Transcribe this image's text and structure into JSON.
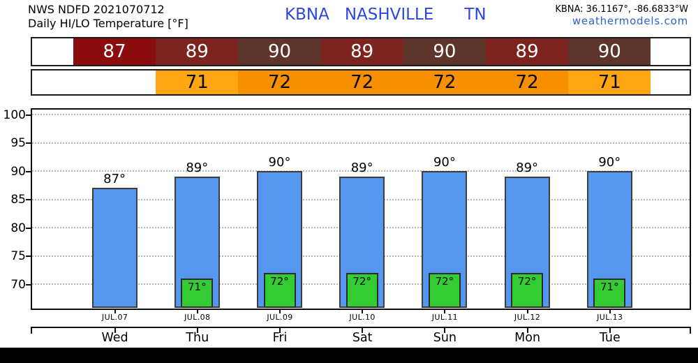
{
  "header": {
    "model_line": "NWS NDFD 2021070712",
    "product_line": "Daily HI/LO Temperature [°F]",
    "station_code": "KBNA",
    "station_city": "NASHVILLE",
    "station_state": "TN",
    "coords": "KBNA: 36.1167°, -86.6833°W",
    "site_link": "weathermodels.com"
  },
  "colors": {
    "title_blue": "#2c46e3",
    "link_blue": "#2e5fd3",
    "hi_bar_fill": "#5596ee",
    "hi_bar_edge": "#3d3d3d",
    "lo_bar_fill": "#33cc33",
    "lo_bar_edge": "#2b2b2b",
    "hi_strip_text": "#ffffff",
    "lo_strip_text": "#000000",
    "hi_strip": {
      "87": "#8b0d0e",
      "89": "#7e241e",
      "90": "#5e352d"
    },
    "lo_strip": {
      "71": "#ffa511",
      "72": "#f78f00"
    },
    "footer": "#000000"
  },
  "hi_strip_values": [
    87,
    89,
    90,
    89,
    90,
    89,
    90
  ],
  "lo_strip_values": [
    71,
    72,
    72,
    72,
    72,
    71
  ],
  "chart_data": {
    "type": "bar",
    "title": "Daily HI/LO Temperature [°F]",
    "x_dates": [
      "JUL.07",
      "JUL.08",
      "JUL.09",
      "JUL.10",
      "JUL.11",
      "JUL.12",
      "JUL.13"
    ],
    "x_days": [
      "Wed",
      "Thu",
      "Fri",
      "Sat",
      "Sun",
      "Mon",
      "Tue"
    ],
    "series": [
      {
        "name": "High",
        "values": [
          87,
          89,
          90,
          89,
          90,
          89,
          90
        ],
        "unit": "°F"
      },
      {
        "name": "Low",
        "values": [
          null,
          71,
          72,
          72,
          72,
          72,
          71
        ],
        "unit": "°F"
      }
    ],
    "yticks": [
      70,
      75,
      80,
      85,
      90,
      95,
      100
    ],
    "ylim": [
      65.8,
      100.9
    ],
    "grid": "horizontal-dotted",
    "legend": "none",
    "label_suffix": "°"
  }
}
